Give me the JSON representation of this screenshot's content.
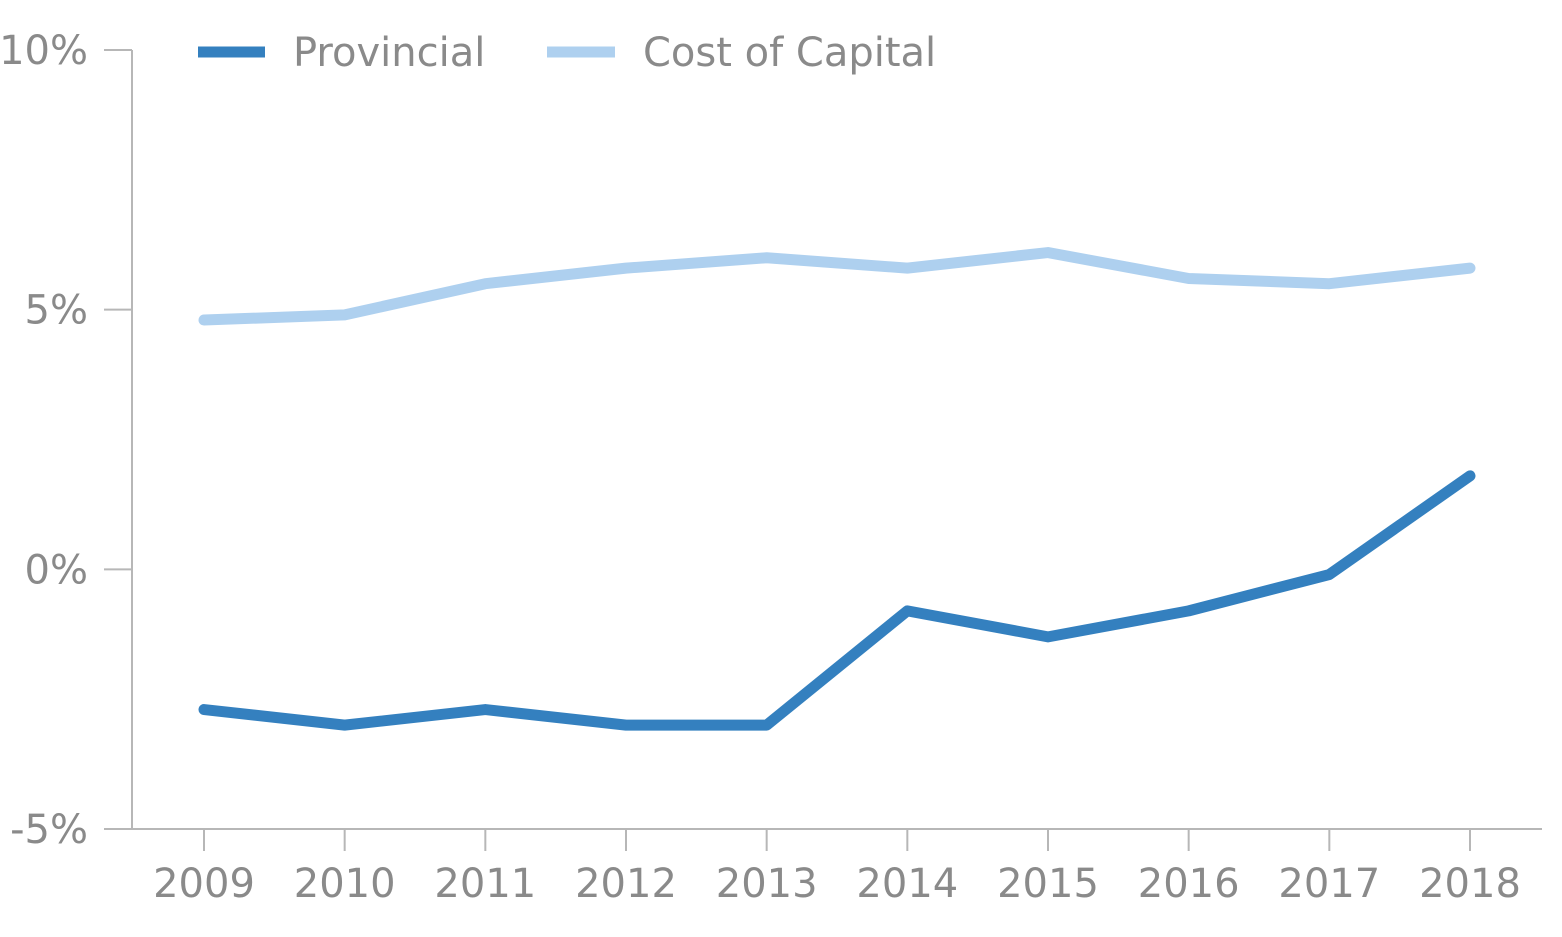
{
  "chart_data": {
    "type": "line",
    "title": "",
    "xlabel": "",
    "ylabel": "",
    "categories": [
      "2009",
      "2010",
      "2011",
      "2012",
      "2013",
      "2014",
      "2015",
      "2016",
      "2017",
      "2018"
    ],
    "ylim": [
      -5,
      10
    ],
    "yticks": [
      -5,
      0,
      5,
      10
    ],
    "ytick_labels": [
      "-5%",
      "0%",
      "5%",
      "10%"
    ],
    "grid": false,
    "legend_position": "top-left",
    "series": [
      {
        "name": "Provincial",
        "color": "#3480bf",
        "values": [
          -2.7,
          -3.0,
          -2.7,
          -3.0,
          -3.0,
          -0.8,
          -1.3,
          -0.8,
          -0.1,
          1.8
        ]
      },
      {
        "name": "Cost of Capital",
        "color": "#aed0ef",
        "values": [
          4.8,
          4.9,
          5.5,
          5.8,
          6.0,
          5.8,
          6.1,
          5.6,
          5.5,
          5.8
        ]
      }
    ]
  }
}
